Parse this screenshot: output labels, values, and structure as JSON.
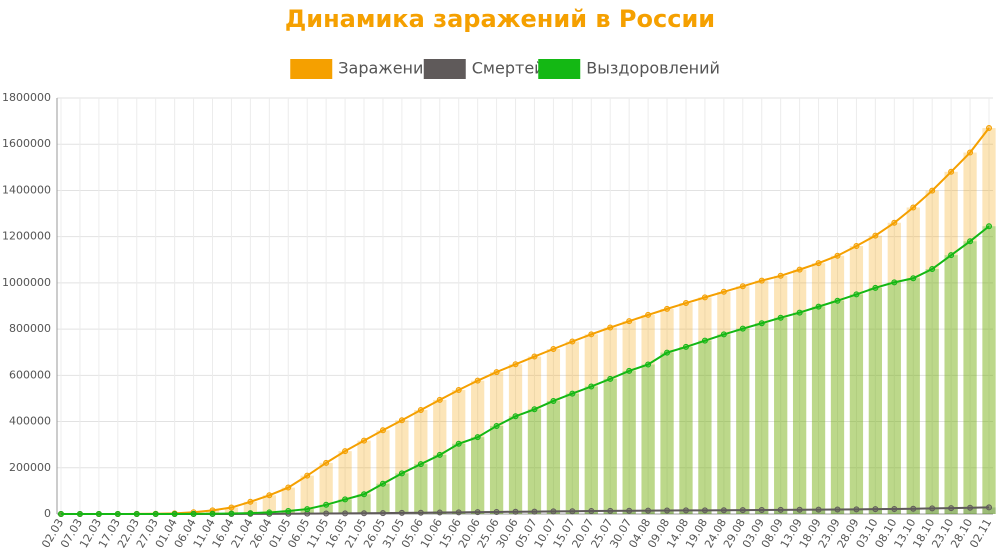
{
  "chart_data": {
    "type": "line",
    "title": "Динамика заражений в России",
    "categories": [
      "02.03",
      "07.03",
      "12.03",
      "17.03",
      "22.03",
      "27.03",
      "01.04",
      "06.04",
      "11.04",
      "16.04",
      "21.04",
      "26.04",
      "01.05",
      "06.05",
      "11.05",
      "16.05",
      "21.05",
      "26.05",
      "31.05",
      "05.06",
      "10.06",
      "15.06",
      "20.06",
      "25.06",
      "30.06",
      "05.07",
      "10.07",
      "15.07",
      "20.07",
      "25.07",
      "30.07",
      "04.08",
      "09.08",
      "14.08",
      "19.08",
      "24.08",
      "29.08",
      "03.09",
      "08.09",
      "13.09",
      "18.09",
      "23.09",
      "28.09",
      "03.10",
      "08.10",
      "13.10",
      "18.10",
      "23.10",
      "28.10",
      "02.11"
    ],
    "series": [
      {
        "name": "Заражений",
        "color": "#f5a000",
        "values": [
          3,
          10,
          34,
          114,
          367,
          1036,
          2777,
          7497,
          15770,
          27938,
          52763,
          80949,
          114431,
          165929,
          221344,
          272043,
          317554,
          362342,
          405843,
          449834,
          493657,
          536484,
          576952,
          613994,
          647849,
          681251,
          713936,
          746369,
          777486,
          806720,
          834499,
          861423,
          887536,
          912823,
          937321,
          961493,
          985346,
          1009995,
          1030690,
          1057362,
          1085281,
          1117487,
          1159573,
          1204502,
          1260112,
          1326178,
          1399334,
          1480646,
          1563976,
          1670000
        ]
      },
      {
        "name": "Смертей",
        "color": "#5f5a5a",
        "values": [
          0,
          0,
          0,
          0,
          1,
          3,
          24,
          63,
          130,
          232,
          456,
          747,
          1169,
          1537,
          2009,
          2537,
          3099,
          3633,
          4693,
          5520,
          6229,
          7074,
          7982,
          8729,
          9859,
          10478,
          11197,
          12080,
          12873,
          13483,
          14065,
          14490,
          14905,
          15465,
          15951,
          16448,
          16998,
          17528,
          17846,
          18365,
          18866,
          19619,
          20225,
          20897,
          21675,
          22778,
          24187,
          25525,
          26935,
          28473
        ]
      },
      {
        "name": "Выздоровлений",
        "color": "#14b814",
        "values": [
          0,
          0,
          0,
          3,
          16,
          49,
          190,
          580,
          1045,
          2304,
          3999,
          6767,
          13220,
          21327,
          39801,
          63166,
          85392,
          131129,
          175877,
          215875,
          255570,
          303828,
          332398,
          380993,
          422931,
          453024,
          489068,
          521046,
          551684,
          584680,
          619164,
          646840,
          698340,
          722964,
          750049,
          777056,
          801993,
          825372,
          849269,
          871495,
          897292,
          922850,
          950215,
          978673,
          1002329,
          1020000,
          1060000,
          1120000,
          1180000,
          1245000
        ]
      }
    ],
    "ylim": [
      0,
      1800000
    ],
    "yticks": [
      0,
      200000,
      400000,
      600000,
      800000,
      1000000,
      1200000,
      1400000,
      1600000,
      1800000
    ],
    "grid": true
  }
}
